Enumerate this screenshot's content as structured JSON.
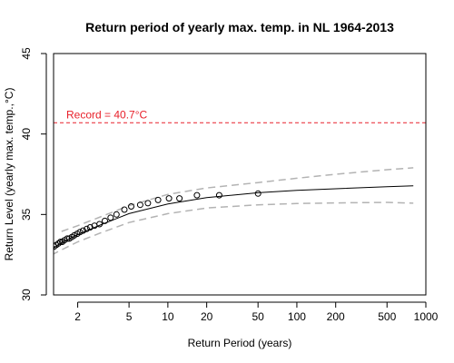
{
  "chart_data": {
    "type": "scatter",
    "title": "Return period of yearly max. temp. in NL 1964-2013",
    "xlabel": "Return Period (years)",
    "ylabel": "Return Level (yearly max. temp.,°C)",
    "x_scale": "log",
    "xlim": [
      1.3,
      1000
    ],
    "ylim": [
      30,
      45
    ],
    "x_ticks": [
      2,
      5,
      10,
      20,
      50,
      100,
      200,
      500,
      1000
    ],
    "y_ticks": [
      30,
      35,
      40,
      45
    ],
    "grid": false,
    "record": {
      "value": 40.7,
      "label": "Record = 40.7°C",
      "color": "#e8202a"
    },
    "observations": {
      "x": [
        1.02,
        1.06,
        1.1,
        1.14,
        1.19,
        1.25,
        1.31,
        1.36,
        1.42,
        1.47,
        1.52,
        1.58,
        1.66,
        1.72,
        1.8,
        1.88,
        1.98,
        2.08,
        2.2,
        2.35,
        2.5,
        2.7,
        2.95,
        3.25,
        3.6,
        4.0,
        4.6,
        5.2,
        6.1,
        7.0,
        8.4,
        10.2,
        12.3,
        16.8,
        25.0,
        50.0
      ],
      "y": [
        32.3,
        32.5,
        32.6,
        32.7,
        32.8,
        32.9,
        33.0,
        33.1,
        33.2,
        33.3,
        33.3,
        33.4,
        33.5,
        33.5,
        33.6,
        33.7,
        33.8,
        33.9,
        34.0,
        34.1,
        34.2,
        34.3,
        34.4,
        34.6,
        34.8,
        35.0,
        35.3,
        35.5,
        35.6,
        35.7,
        35.9,
        36.0,
        36.0,
        36.2,
        36.2,
        36.3
      ]
    },
    "fit": {
      "x": [
        1.05,
        1.3,
        1.5,
        2,
        3,
        5,
        10,
        20,
        50,
        100,
        200,
        500,
        800
      ],
      "y": [
        32.3,
        32.95,
        33.25,
        33.75,
        34.35,
        35.05,
        35.65,
        36.05,
        36.35,
        36.5,
        36.6,
        36.72,
        36.78
      ]
    },
    "upper_ci": {
      "x": [
        1.5,
        2,
        3,
        5,
        10,
        20,
        50,
        100,
        200,
        500,
        800
      ],
      "y": [
        33.95,
        34.3,
        34.85,
        35.55,
        36.25,
        36.65,
        36.98,
        37.25,
        37.5,
        37.78,
        37.9
      ]
    },
    "lower_ci": {
      "x": [
        1.05,
        1.3,
        1.5,
        2,
        3,
        5,
        10,
        20,
        50,
        100,
        200,
        500,
        800
      ],
      "y": [
        32.1,
        32.55,
        32.8,
        33.3,
        33.85,
        34.5,
        35.05,
        35.4,
        35.6,
        35.68,
        35.72,
        35.75,
        35.7
      ]
    },
    "colors": {
      "fit": "#000000",
      "ci": "#b3b3b3",
      "points": "#000000"
    }
  }
}
